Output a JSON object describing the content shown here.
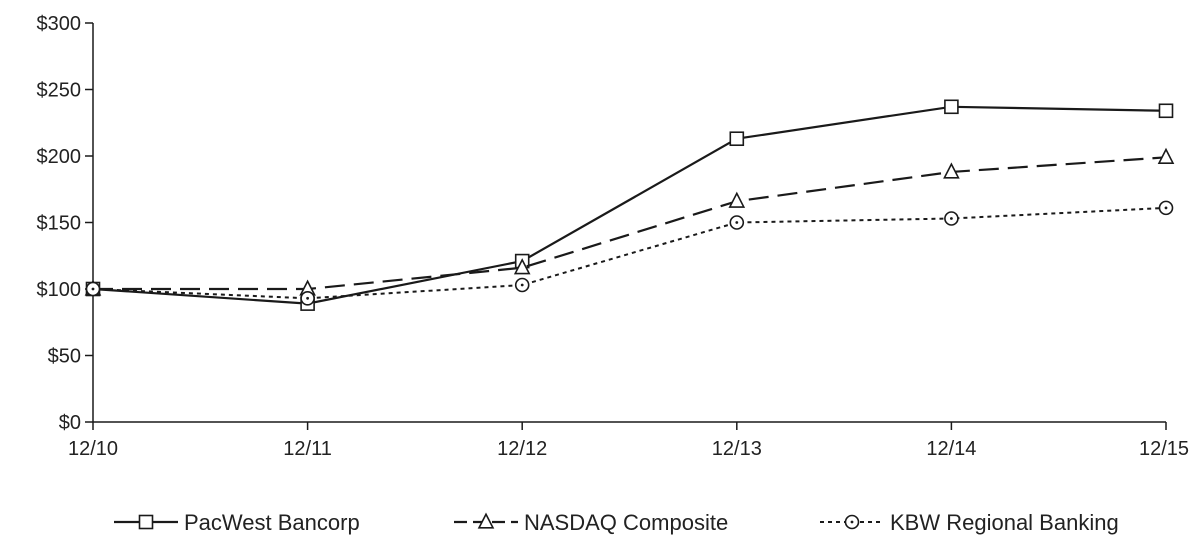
{
  "chart_data": {
    "type": "line",
    "categories": [
      "12/10",
      "12/11",
      "12/12",
      "12/13",
      "12/14",
      "12/15"
    ],
    "ylim": [
      0,
      300
    ],
    "yticks": [
      0,
      50,
      100,
      150,
      200,
      250,
      300
    ],
    "ytick_labels": [
      "$0",
      "$50",
      "$100",
      "$150",
      "$200",
      "$250",
      "$300"
    ],
    "legend_position": "bottom",
    "grid": false,
    "series": [
      {
        "name": "PacWest Bancorp",
        "values": [
          100,
          89,
          121,
          213,
          237,
          234
        ],
        "marker": "square",
        "line_style": "solid",
        "color": "#1a1a1a"
      },
      {
        "name": "NASDAQ Composite",
        "values": [
          100,
          100,
          116,
          166,
          188,
          199
        ],
        "marker": "triangle",
        "line_style": "dashed",
        "color": "#1a1a1a"
      },
      {
        "name": "KBW Regional Banking",
        "values": [
          100,
          93,
          103,
          150,
          153,
          161
        ],
        "marker": "circle",
        "line_style": "dotted",
        "color": "#1a1a1a"
      }
    ]
  }
}
